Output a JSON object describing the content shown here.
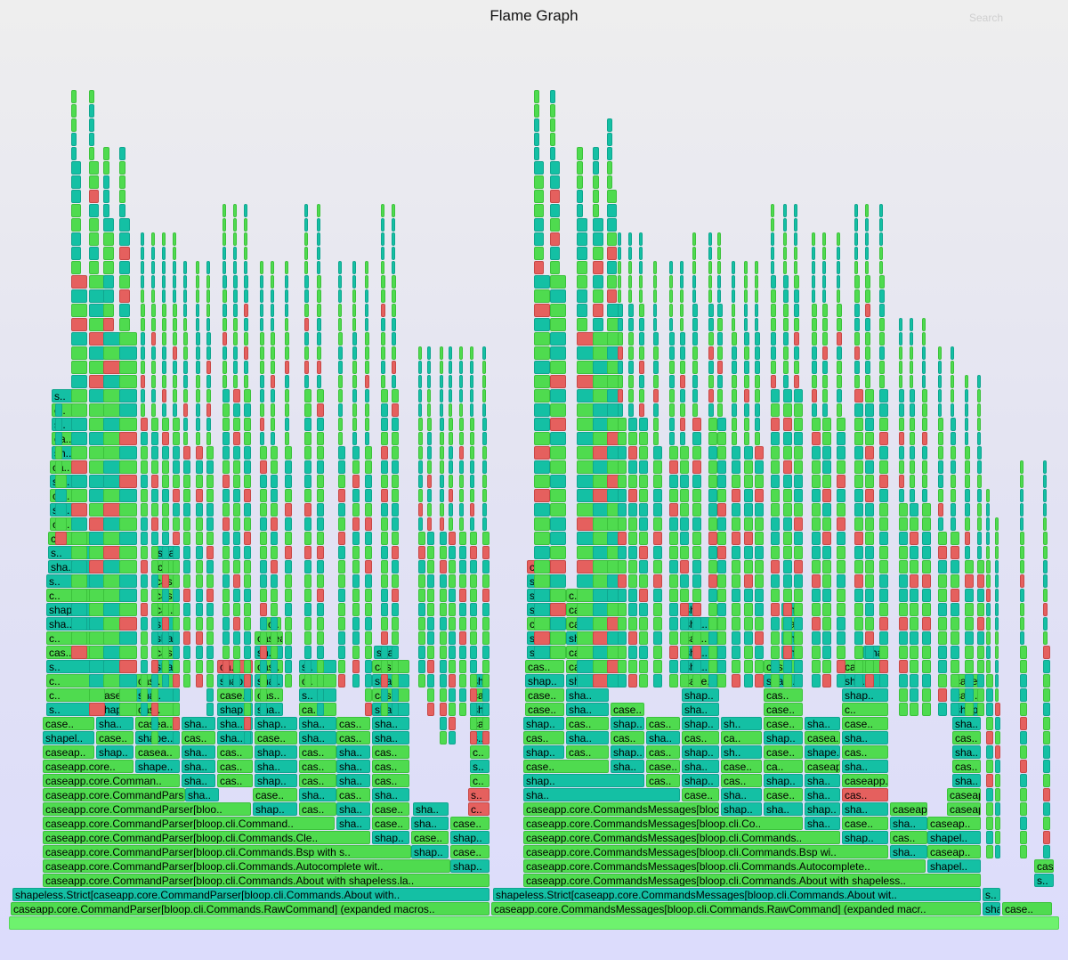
{
  "title": "Flame Graph",
  "search_label": "Search",
  "colors": {
    "green": "#4fdb4f",
    "teal": "#14c0a4",
    "red": "#e5605e",
    "root": "#6ef26e"
  },
  "frames": [
    {
      "l": "caseapp.core.CommandParser[bloop.cli.Commands.RawCommand] (expanded macros..",
      "c": "g"
    },
    {
      "l": "shapeless.Strict[caseapp.core.CommandParser[bloop.cli.Commands.About with..",
      "c": "t"
    },
    {
      "l": "caseapp.core.CommandParser[bloop.cli.Commands.About with shapeless.la..",
      "c": "g"
    },
    {
      "l": "caseapp.core.CommandParser[bloop.cli.Commands.Autocomplete wit..",
      "c": "g"
    },
    {
      "l": "shap..",
      "c": "t"
    },
    {
      "l": "caseapp.core.CommandParser[bloop.cli.Commands.Bsp with s..",
      "c": "g"
    },
    {
      "l": "shap..",
      "c": "t"
    },
    {
      "l": "case..",
      "c": "g"
    },
    {
      "l": "caseapp.core.CommandParser[bloop.cli.Commands.Cle..",
      "c": "g"
    },
    {
      "l": "shap..",
      "c": "t"
    },
    {
      "l": "case..",
      "c": "g"
    },
    {
      "l": "shap..",
      "c": "t"
    },
    {
      "l": "caseapp.core.CommandParser[bloop.cli.Command..",
      "c": "g"
    },
    {
      "l": "sha..",
      "c": "t"
    },
    {
      "l": "case..",
      "c": "g"
    },
    {
      "l": "sha..",
      "c": "t"
    },
    {
      "l": "case..",
      "c": "g"
    },
    {
      "l": "caseapp.core.CommandParser[bloo..",
      "c": "g"
    },
    {
      "l": "shap..",
      "c": "t"
    },
    {
      "l": "cas..",
      "c": "g"
    },
    {
      "l": "sha..",
      "c": "t"
    },
    {
      "l": "case..",
      "c": "g"
    },
    {
      "l": "sha..",
      "c": "t"
    },
    {
      "l": "c..",
      "c": "r"
    },
    {
      "l": "caseapp.core.CommandParse..",
      "c": "g"
    },
    {
      "l": "sha..",
      "c": "t"
    },
    {
      "l": "case..",
      "c": "g"
    },
    {
      "l": "sha..",
      "c": "t"
    },
    {
      "l": "cas..",
      "c": "g"
    },
    {
      "l": "sha..",
      "c": "t"
    },
    {
      "l": "s..",
      "c": "r"
    },
    {
      "l": "caseapp.core.Comman..",
      "c": "g"
    },
    {
      "l": "sha..",
      "c": "t"
    },
    {
      "l": "cas..",
      "c": "g"
    },
    {
      "l": "shap..",
      "c": "t"
    },
    {
      "l": "cas..",
      "c": "g"
    },
    {
      "l": "sha..",
      "c": "t"
    },
    {
      "l": "cas..",
      "c": "g"
    },
    {
      "l": "c..",
      "c": "g"
    },
    {
      "l": "caseapp.core..",
      "c": "g"
    },
    {
      "l": "shape..",
      "c": "t"
    },
    {
      "l": "sha..",
      "c": "t"
    },
    {
      "l": "cas..",
      "c": "g"
    },
    {
      "l": "sha..",
      "c": "t"
    },
    {
      "l": "cas..",
      "c": "g"
    },
    {
      "l": "sha..",
      "c": "t"
    },
    {
      "l": "cas..",
      "c": "g"
    },
    {
      "l": "s..",
      "c": "t"
    },
    {
      "l": "caseap..",
      "c": "g"
    },
    {
      "l": "shap..",
      "c": "t"
    },
    {
      "l": "casea..",
      "c": "g"
    },
    {
      "l": "sha..",
      "c": "t"
    },
    {
      "l": "cas..",
      "c": "g"
    },
    {
      "l": "shap..",
      "c": "t"
    },
    {
      "l": "cas..",
      "c": "g"
    },
    {
      "l": "sha..",
      "c": "t"
    },
    {
      "l": "cas..",
      "c": "g"
    },
    {
      "l": "c..",
      "c": "g"
    },
    {
      "l": "shapel..",
      "c": "t"
    },
    {
      "l": "case..",
      "c": "g"
    },
    {
      "l": "shape..",
      "c": "t"
    },
    {
      "l": "cas..",
      "c": "g"
    },
    {
      "l": "sha..",
      "c": "t"
    },
    {
      "l": "case..",
      "c": "g"
    },
    {
      "l": "sha..",
      "c": "t"
    },
    {
      "l": "cas..",
      "c": "g"
    },
    {
      "l": "sha..",
      "c": "t"
    },
    {
      "l": "s..",
      "c": "t"
    },
    {
      "l": "case..",
      "c": "g"
    },
    {
      "l": "sha..",
      "c": "t"
    },
    {
      "l": "casea..",
      "c": "g"
    },
    {
      "l": "sha..",
      "c": "t"
    },
    {
      "l": "sha..",
      "c": "t"
    },
    {
      "l": "shap..",
      "c": "t"
    },
    {
      "l": "sha..",
      "c": "t"
    },
    {
      "l": "cas..",
      "c": "g"
    },
    {
      "l": "sha..",
      "c": "t"
    },
    {
      "l": "cas..",
      "c": "g"
    },
    {
      "l": "s..",
      "c": "t"
    },
    {
      "l": "shape..",
      "c": "t"
    },
    {
      "l": "cas..",
      "c": "g"
    },
    {
      "l": "shap..",
      "c": "t"
    },
    {
      "l": "sha..",
      "c": "t"
    },
    {
      "l": "ca..",
      "c": "g"
    },
    {
      "l": "sha..",
      "c": "t"
    },
    {
      "l": "sha..",
      "c": "t"
    },
    {
      "l": "c..",
      "c": "g"
    },
    {
      "l": "casea..",
      "c": "g"
    },
    {
      "l": "sha..",
      "c": "t"
    },
    {
      "l": "case..",
      "c": "g"
    },
    {
      "l": "cas..",
      "c": "g"
    },
    {
      "l": "s..",
      "c": "t"
    },
    {
      "l": "cas..",
      "c": "g"
    },
    {
      "l": "cas..",
      "c": "g"
    },
    {
      "l": "c..",
      "c": "g"
    },
    {
      "l": "shape..",
      "c": "t"
    },
    {
      "l": "cas..",
      "c": "g"
    },
    {
      "l": "shap..",
      "c": "t"
    },
    {
      "l": "sha..",
      "c": "t"
    },
    {
      "l": "c..",
      "c": "g"
    },
    {
      "l": "sha..",
      "c": "t"
    },
    {
      "l": "sha..",
      "c": "t"
    },
    {
      "l": "s..",
      "c": "t"
    },
    {
      "l": "casea..",
      "c": "g"
    },
    {
      "l": "sha..",
      "c": "t"
    },
    {
      "l": "ca..",
      "c": "r"
    },
    {
      "l": "cas..",
      "c": "g"
    },
    {
      "l": "s..",
      "c": "t"
    },
    {
      "l": "cas..",
      "c": "g"
    },
    {
      "l": "cas..",
      "c": "g"
    },
    {
      "l": "shape..",
      "c": "t"
    },
    {
      "l": "cas..",
      "c": "g"
    },
    {
      "l": "sh..",
      "c": "t"
    },
    {
      "l": "sha..",
      "c": "t"
    },
    {
      "l": "c..",
      "c": "g"
    },
    {
      "l": "sha..",
      "c": "t"
    },
    {
      "l": "sha..",
      "c": "t"
    },
    {
      "l": "casea..",
      "c": "g"
    },
    {
      "l": "sha..",
      "c": "t"
    },
    {
      "l": "ca..",
      "c": "g"
    },
    {
      "l": "s..",
      "c": "t"
    },
    {
      "l": "c..",
      "c": "g"
    },
    {
      "l": "shape..",
      "c": "t"
    },
    {
      "l": "sh..",
      "c": "t"
    },
    {
      "l": "ca..",
      "c": "g"
    },
    {
      "l": "c..",
      "c": "g"
    },
    {
      "l": "shape..",
      "c": "t"
    },
    {
      "l": "cas..",
      "c": "g"
    },
    {
      "l": "s..",
      "c": "t"
    },
    {
      "l": "casea..",
      "c": "g"
    },
    {
      "l": "sha..",
      "c": "t"
    },
    {
      "l": "c..",
      "c": "g"
    },
    {
      "l": "s..",
      "c": "t"
    },
    {
      "l": "shape..",
      "c": "t"
    },
    {
      "l": "c..",
      "c": "g"
    },
    {
      "l": "ca..",
      "c": "g"
    },
    {
      "l": "sh..",
      "c": "t"
    },
    {
      "l": "ca..",
      "c": "g"
    },
    {
      "l": "sh..",
      "c": "t"
    },
    {
      "l": "ca..",
      "c": "g"
    },
    {
      "l": "sh..",
      "c": "t"
    },
    {
      "l": "ca..",
      "c": "g"
    },
    {
      "l": "s..",
      "c": "t"
    },
    {
      "l": "c..",
      "c": "g"
    },
    {
      "l": "s..",
      "c": "t"
    },
    {
      "l": "caseapp.core.CommandsMessages[bloop.cli.Commands.RawCommand] (expanded macr..",
      "c": "g"
    },
    {
      "l": "shapeless.Strict[caseapp.core.CommandsMessages[bloop.cli.Commands.About wit..",
      "c": "t"
    },
    {
      "l": "caseapp.core.CommandsMessages[bloop.cli.Commands.About with shapeless..",
      "c": "g"
    },
    {
      "l": "caseapp.core.CommandsMessages[bloop.cli.Commands.Autocomplete..",
      "c": "g"
    },
    {
      "l": "shapel..",
      "c": "t"
    },
    {
      "l": "caseapp.core.CommandsMessages[bloop.cli.Commands.Bsp wi..",
      "c": "g"
    },
    {
      "l": "sha..",
      "c": "t"
    },
    {
      "l": "caseap..",
      "c": "g"
    },
    {
      "l": "caseapp.core.CommandsMessages[bloop.cli.Commands..",
      "c": "g"
    },
    {
      "l": "shap..",
      "c": "t"
    },
    {
      "l": "cas..",
      "c": "g"
    },
    {
      "l": "shapel..",
      "c": "t"
    },
    {
      "l": "caseapp.core.CommandsMessages[bloop.cli.Co..",
      "c": "g"
    },
    {
      "l": "sha..",
      "c": "t"
    },
    {
      "l": "case..",
      "c": "g"
    },
    {
      "l": "sha..",
      "c": "t"
    },
    {
      "l": "caseap..",
      "c": "g"
    },
    {
      "l": "caseapp.core.CommandsMessages[bloop..",
      "c": "g"
    },
    {
      "l": "shap..",
      "c": "t"
    },
    {
      "l": "sha..",
      "c": "t"
    },
    {
      "l": "shap..",
      "c": "t"
    },
    {
      "l": "sha..",
      "c": "t"
    },
    {
      "l": "caseap..",
      "c": "g"
    },
    {
      "l": "caseapp.core.CommandsMessages..",
      "c": "g"
    },
    {
      "l": "sha..",
      "c": "t"
    },
    {
      "l": "case..",
      "c": "g"
    },
    {
      "l": "sha..",
      "c": "t"
    },
    {
      "l": "case..",
      "c": "g"
    },
    {
      "l": "sha..",
      "c": "t"
    },
    {
      "l": "cas..",
      "c": "r"
    },
    {
      "l": "caseapp.core.CommandsM..",
      "c": "g"
    },
    {
      "l": "shap..",
      "c": "t"
    },
    {
      "l": "cas..",
      "c": "g"
    },
    {
      "l": "shap..",
      "c": "t"
    },
    {
      "l": "cas..",
      "c": "g"
    },
    {
      "l": "shap..",
      "c": "t"
    },
    {
      "l": "sha..",
      "c": "t"
    },
    {
      "l": "caseapp.core.Comm..",
      "c": "g"
    },
    {
      "l": "sha..",
      "c": "t"
    },
    {
      "l": "case..",
      "c": "g"
    },
    {
      "l": "sha..",
      "c": "t"
    },
    {
      "l": "case..",
      "c": "g"
    },
    {
      "l": "sha..",
      "c": "t"
    },
    {
      "l": "case..",
      "c": "g"
    },
    {
      "l": "ca..",
      "c": "g"
    },
    {
      "l": "caseapp.cor..",
      "c": "g"
    },
    {
      "l": "sha..",
      "c": "t"
    },
    {
      "l": "cas..",
      "c": "g"
    },
    {
      "l": "shap..",
      "c": "t"
    },
    {
      "l": "cas..",
      "c": "g"
    },
    {
      "l": "shap..",
      "c": "t"
    },
    {
      "l": "cas..",
      "c": "g"
    },
    {
      "l": "shap..",
      "c": "t"
    },
    {
      "l": "sh..",
      "c": "t"
    },
    {
      "l": "case..",
      "c": "g"
    },
    {
      "l": "shape..",
      "c": "t"
    },
    {
      "l": "cas..",
      "c": "g"
    },
    {
      "l": "sha..",
      "c": "t"
    },
    {
      "l": "cas..",
      "c": "g"
    },
    {
      "l": "sha..",
      "c": "t"
    },
    {
      "l": "cas..",
      "c": "g"
    },
    {
      "l": "sha..",
      "c": "t"
    },
    {
      "l": "cas..",
      "c": "g"
    },
    {
      "l": "ca..",
      "c": "g"
    },
    {
      "l": "shap..",
      "c": "t"
    },
    {
      "l": "casea..",
      "c": "g"
    },
    {
      "l": "sha..",
      "c": "t"
    },
    {
      "l": "cas..",
      "c": "g"
    },
    {
      "l": "shap..",
      "c": "t"
    },
    {
      "l": "cas..",
      "c": "g"
    },
    {
      "l": "shap..",
      "c": "t"
    },
    {
      "l": "cas..",
      "c": "g"
    },
    {
      "l": "shap..",
      "c": "t"
    },
    {
      "l": "sh..",
      "c": "t"
    },
    {
      "l": "case..",
      "c": "g"
    },
    {
      "l": "sha..",
      "c": "t"
    },
    {
      "l": "case..",
      "c": "g"
    },
    {
      "l": "sha..",
      "c": "t"
    },
    {
      "l": "case..",
      "c": "g"
    },
    {
      "l": "sha..",
      "c": "t"
    },
    {
      "l": "case..",
      "c": "g"
    },
    {
      "l": "sha..",
      "c": "t"
    },
    {
      "l": "case..",
      "c": "g"
    },
    {
      "l": "c..",
      "c": "g"
    },
    {
      "l": "shap..",
      "c": "t"
    },
    {
      "l": "case..",
      "c": "g"
    },
    {
      "l": "sha..",
      "c": "t"
    },
    {
      "l": "shap..",
      "c": "t"
    },
    {
      "l": "cas..",
      "c": "g"
    },
    {
      "l": "shap..",
      "c": "t"
    },
    {
      "l": "cas..",
      "c": "g"
    },
    {
      "l": "shap..",
      "c": "t"
    },
    {
      "l": "sh..",
      "c": "t"
    },
    {
      "l": "case..",
      "c": "g"
    },
    {
      "l": "shap..",
      "c": "t"
    },
    {
      "l": "sha..",
      "c": "t"
    },
    {
      "l": "case..",
      "c": "g"
    },
    {
      "l": "cas..",
      "c": "g"
    },
    {
      "l": "case..",
      "c": "g"
    },
    {
      "l": "sha..",
      "c": "t"
    },
    {
      "l": "cas..",
      "c": "g"
    },
    {
      "l": "ca..",
      "c": "g"
    },
    {
      "l": "sha..",
      "c": "t"
    },
    {
      "l": "case..",
      "c": "g"
    },
    {
      "l": "sha..",
      "c": "t"
    },
    {
      "l": "shap..",
      "c": "t"
    },
    {
      "l": "sha..",
      "c": "t"
    },
    {
      "l": "shap..",
      "c": "t"
    },
    {
      "l": "sh..",
      "c": "t"
    },
    {
      "l": "cas..",
      "c": "g"
    },
    {
      "l": "shap..",
      "c": "t"
    },
    {
      "l": "case..",
      "c": "g"
    },
    {
      "l": "cas..",
      "c": "g"
    },
    {
      "l": "sha..",
      "c": "t"
    },
    {
      "l": "cas..",
      "c": "g"
    },
    {
      "l": "sha..",
      "c": "t"
    },
    {
      "l": "case..",
      "c": "g"
    },
    {
      "l": "sha..",
      "c": "t"
    },
    {
      "l": "shap..",
      "c": "t"
    },
    {
      "l": "shap..",
      "c": "t"
    },
    {
      "l": "c..",
      "c": "g"
    },
    {
      "l": "shap..",
      "c": "t"
    },
    {
      "l": "c..",
      "c": "g"
    },
    {
      "l": "c..",
      "c": "r"
    },
    {
      "l": "cas..",
      "c": "g"
    },
    {
      "l": "shap..",
      "c": "t"
    },
    {
      "l": "c..",
      "c": "g"
    },
    {
      "l": "sha..",
      "c": "t"
    },
    {
      "l": "shap..",
      "c": "t"
    },
    {
      "l": "s..",
      "c": "t"
    },
    {
      "l": "c..",
      "c": "g"
    },
    {
      "l": "sha..",
      "c": "t"
    },
    {
      "l": "case..",
      "c": "g"
    },
    {
      "l": "s..",
      "c": "t"
    },
    {
      "l": "s..",
      "c": "t"
    },
    {
      "l": "cas..",
      "c": "g"
    },
    {
      "l": "sha..",
      "c": "t"
    },
    {
      "l": "shap..",
      "c": "t"
    },
    {
      "l": "c..",
      "c": "g"
    },
    {
      "l": "c..",
      "c": "g"
    },
    {
      "l": "sha..",
      "c": "t"
    },
    {
      "l": "s..",
      "c": "r"
    },
    {
      "l": "sha..",
      "c": "t"
    },
    {
      "l": "c..",
      "c": "g"
    },
    {
      "l": "s..",
      "c": "t"
    },
    {
      "l": "c..",
      "c": "g"
    },
    {
      "l": "s..",
      "c": "t"
    },
    {
      "l": "c..",
      "c": "g"
    },
    {
      "l": "s..",
      "c": "t"
    },
    {
      "l": "c..",
      "c": "g"
    },
    {
      "l": "s..",
      "c": "t"
    },
    {
      "l": "c..",
      "c": "g"
    },
    {
      "l": "caseap..",
      "c": "g"
    },
    {
      "l": "c..",
      "c": "t"
    },
    {
      "l": "c..",
      "c": "g"
    },
    {
      "l": "sh..",
      "c": "t"
    },
    {
      "l": "c..",
      "c": "g"
    }
  ]
}
